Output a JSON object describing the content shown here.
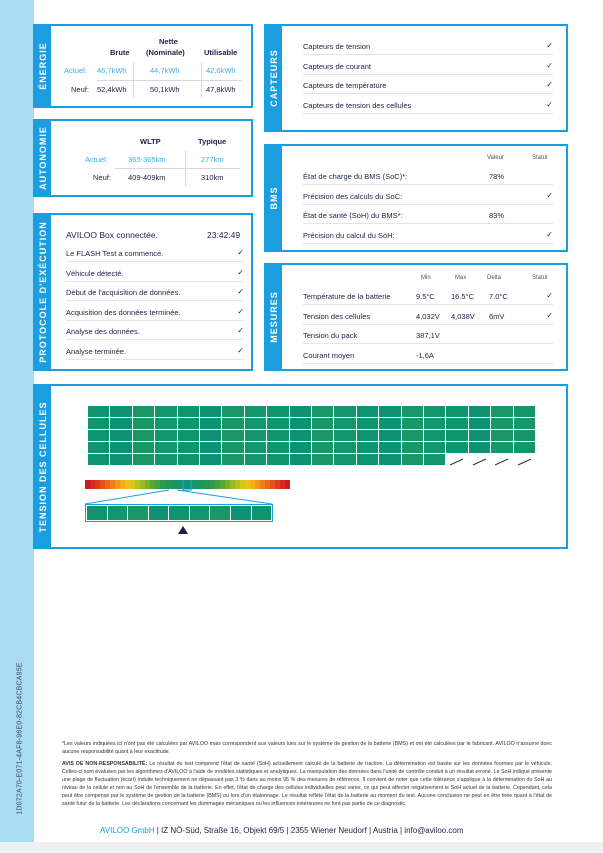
{
  "doc_id": "1D072A70-E071-4AF8-96E0-82CB4CBCA95E",
  "energie": {
    "label": "ÉNERGIE",
    "headers": [
      "Brute",
      "Nette\n(Nominale)",
      "Utilisable"
    ],
    "h1": "Brute",
    "h2a": "Nette",
    "h2b": "(Nominale)",
    "h3": "Utilisable",
    "actuel_label": "Actuel:",
    "neuf_label": "Neuf:",
    "actuel": [
      "46,7kWh",
      "44,7kWh",
      "42,6kWh"
    ],
    "neuf": [
      "52,4kWh",
      "50,1kWh",
      "47,8kWh"
    ]
  },
  "autonomie": {
    "label": "AUTONOMIE",
    "h1": "WLTP",
    "h2": "Typique",
    "actuel_label": "Actuel:",
    "neuf_label": "Neuf:",
    "actuel": [
      "365-365km",
      "277km"
    ],
    "neuf": [
      "409-409km",
      "310km"
    ]
  },
  "capteurs": {
    "label": "CAPTEURS",
    "items": [
      {
        "label": "Capteurs de tension",
        "status": "✓"
      },
      {
        "label": "Capteurs de courant",
        "status": "✓"
      },
      {
        "label": "Capteurs de température",
        "status": "✓"
      },
      {
        "label": "Capteurs de tension des cellules",
        "status": "✓"
      }
    ]
  },
  "bms": {
    "label": "BMS",
    "col_value": "Valeur",
    "col_status": "Statut",
    "items": [
      {
        "label": "État de charge du BMS (SoC)*:",
        "value": "78%",
        "status": ""
      },
      {
        "label": "Précision des calculs du SoC:",
        "value": "",
        "status": "✓"
      },
      {
        "label": "État de santé (SoH) du BMS*:",
        "value": "83%",
        "status": ""
      },
      {
        "label": "Précision du calcul du SoH:",
        "value": "",
        "status": "✓"
      }
    ]
  },
  "protocole": {
    "label": "PROTOCOLE D'EXÉCUTION",
    "title": "AVILOO Box connectée.",
    "time": "23:42:49",
    "items": [
      {
        "label": "Le FLASH Test a commencé.",
        "status": "✓"
      },
      {
        "label": "Véhicule détecté.",
        "status": "✓"
      },
      {
        "label": "Début de l'acquisition de données.",
        "status": "✓"
      },
      {
        "label": "Acquisition des données terminée.",
        "status": "✓"
      },
      {
        "label": "Analyse des données.",
        "status": "✓"
      },
      {
        "label": "Analyse terminée.",
        "status": "✓"
      }
    ]
  },
  "mesures": {
    "label": "MESURES",
    "cols": [
      "Min",
      "Max",
      "Delta",
      "Statut"
    ],
    "items": [
      {
        "label": "Température de la batterie",
        "min": "9.5°C",
        "max": "16.5°C",
        "delta": "7.0°C",
        "status": "✓"
      },
      {
        "label": "Tension des cellules",
        "min": "4,032V",
        "max": "4,038V",
        "delta": "6mV",
        "status": "✓"
      },
      {
        "label": "Tension du pack",
        "min": "387,1V",
        "max": "",
        "delta": "",
        "status": ""
      },
      {
        "label": "Courant moyen",
        "min": "-1,6A",
        "max": "",
        "delta": "",
        "status": ""
      }
    ]
  },
  "cellules": {
    "label": "TENSION DES CELLULES",
    "columns": 20,
    "rows": 5,
    "cell_count": 96,
    "cell_color": "#0f9470",
    "scale_selected_index": 20
  },
  "footer": {
    "note": "*Les valeurs indiquées ici n'ont pas été calculées par AVILOO mais correspondent aux valeurs lues sur le système de gestion de la batterie (BMS) et ont été calculées par le fabricant. AVILOO n'assume donc aucune responsabilité quant à leur exactitude.",
    "disclaimer_title": "AVIS DE NON-RESPONSABILITÉ:",
    "disclaimer": " Le résultat du test comprend l'état de santé (SoH) actuellement calculé de la batterie de traction. La détermination est basée sur les données fournies par le véhicule. Celles-ci sont évaluées par les algorithmes d'AVILOO à l'aide de modèles statistiques et analytiques. La manipulation des données dans l'unité de contrôle conduit à un résultat erroné. Le SoH indiqué présente une plage de fluctuation (écart) induite techniquement ne dépassant pas 3 % dans au moins 95 % des mesures de référence. Il convient de noter que cette tolérance s'applique à la détermination du SoH au niveau de la cellule et non au SoH de l'ensemble de la batterie. En effet, l'état de charge des cellules individuelles peut varier, ce qui peut affecter négativement le SoH actuel de la batterie. Cependant, cela peut être compensé par le système de gestion de la batterie (BMS) ou lors d'un étalonnage. Le résultat reflète l'état de la batterie au moment du test. Aucune conclusion ne peut en être tirée quant à l'état de santé futur de la batterie. Les déclarations concernant les dommages mécaniques ou les influences extérieures ne font pas partie de ce diagnostic.",
    "company": "AVILOO GmbH",
    "address": " | IZ NÖ-Süd, Straße 16, Objekt 69/5 | 2355 Wiener Neudorf | Austria | info@aviloo.com"
  },
  "colors": {
    "accent": "#1a9ee0",
    "strip": "#a9dcf3",
    "cell": "#0f9470",
    "text": "#1d2146"
  }
}
